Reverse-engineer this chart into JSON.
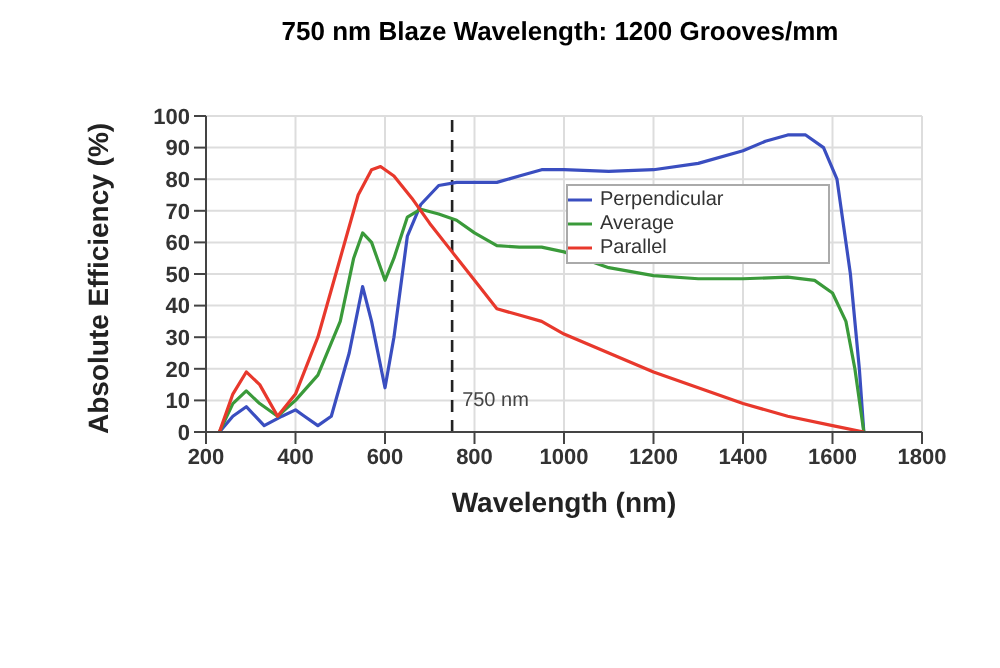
{
  "chart_data": {
    "type": "line",
    "title": "750 nm Blaze Wavelength: 1200 Grooves/mm",
    "xlabel": "Wavelength (nm)",
    "ylabel": "Absolute Efficiency (%)",
    "xlim": [
      200,
      1800
    ],
    "xticks": [
      200,
      400,
      600,
      800,
      1000,
      1200,
      1400,
      1600,
      1800
    ],
    "ylim": [
      0,
      100
    ],
    "yticks": [
      0,
      10,
      20,
      30,
      40,
      50,
      60,
      70,
      80,
      90,
      100
    ],
    "grid": true,
    "legend": "top right",
    "line_style": "solid",
    "marker": "none",
    "ref_lines": [
      {
        "axis": "x",
        "value": 750,
        "label": "750 nm",
        "line_style": "dashed",
        "color": "#222222"
      }
    ],
    "series": [
      {
        "name": "Perpendicular",
        "color": "#3a4ec0",
        "x": [
          230,
          260,
          290,
          310,
          330,
          370,
          400,
          420,
          450,
          480,
          520,
          550,
          570,
          600,
          620,
          650,
          680,
          720,
          760,
          800,
          850,
          900,
          950,
          1000,
          1100,
          1200,
          1300,
          1400,
          1450,
          1500,
          1540,
          1580,
          1610,
          1640,
          1660,
          1670
        ],
        "values": [
          0,
          5,
          8,
          5,
          2,
          5,
          7,
          5,
          2,
          5,
          25,
          46,
          35,
          14,
          30,
          62,
          72,
          78,
          79,
          79,
          79,
          81,
          83,
          83,
          82.5,
          83,
          85,
          89,
          92,
          94,
          94,
          90,
          80,
          50,
          20,
          0
        ]
      },
      {
        "name": "Average",
        "color": "#3a9a3a",
        "x": [
          230,
          260,
          290,
          320,
          360,
          400,
          450,
          500,
          530,
          550,
          570,
          600,
          620,
          650,
          680,
          720,
          760,
          800,
          850,
          900,
          950,
          1000,
          1100,
          1200,
          1300,
          1400,
          1500,
          1560,
          1600,
          1630,
          1650,
          1670
        ],
        "values": [
          0,
          9,
          13,
          9,
          5,
          10,
          18,
          35,
          55,
          63,
          60,
          48,
          55,
          68,
          70.5,
          69,
          67,
          63,
          59,
          58.5,
          58.5,
          57,
          52,
          49.5,
          48.5,
          48.5,
          49,
          48,
          44,
          35,
          20,
          0
        ]
      },
      {
        "name": "Parallel",
        "color": "#e8382c",
        "x": [
          230,
          260,
          290,
          320,
          360,
          400,
          450,
          500,
          540,
          570,
          590,
          620,
          660,
          700,
          750,
          800,
          850,
          900,
          950,
          1000,
          1100,
          1200,
          1300,
          1400,
          1500,
          1600,
          1670
        ],
        "values": [
          0,
          12,
          19,
          15,
          5,
          12,
          30,
          55,
          75,
          83,
          84,
          81,
          74,
          66,
          57,
          48,
          39,
          37,
          35,
          31,
          25,
          19,
          14,
          9,
          5,
          2,
          0
        ]
      }
    ]
  }
}
